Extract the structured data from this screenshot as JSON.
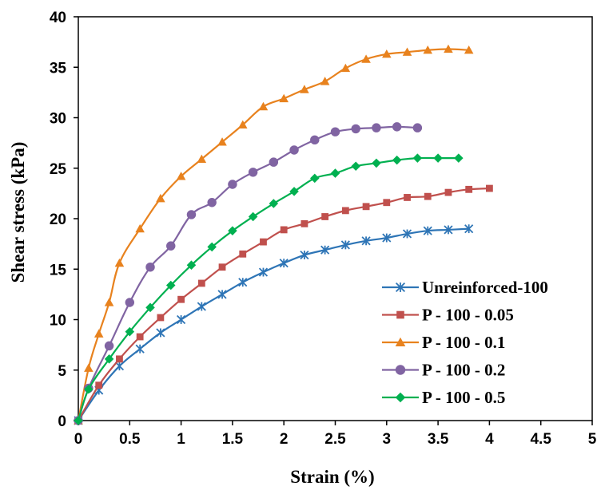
{
  "chart_data": {
    "type": "line",
    "title": "",
    "xlabel": "Strain (%)",
    "ylabel": "Shear stress (kPa)",
    "xlim": [
      0,
      5
    ],
    "ylim": [
      0,
      40
    ],
    "x_ticks": [
      "0",
      "0.5",
      "1",
      "1.5",
      "2",
      "2.5",
      "3",
      "3.5",
      "4",
      "4.5",
      "5"
    ],
    "y_ticks": [
      "0",
      "5",
      "10",
      "15",
      "20",
      "25",
      "30",
      "35",
      "40"
    ],
    "grid": false,
    "legend_position": "bottom-right",
    "series": [
      {
        "name": "Unreinforced-100",
        "color": "#2e75b6",
        "marker": "star",
        "x": [
          0,
          0.2,
          0.4,
          0.6,
          0.8,
          1.0,
          1.2,
          1.4,
          1.6,
          1.8,
          2.0,
          2.2,
          2.4,
          2.6,
          2.8,
          3.0,
          3.2,
          3.4,
          3.6,
          3.8
        ],
        "y": [
          0,
          3.0,
          5.4,
          7.1,
          8.7,
          10.0,
          11.3,
          12.5,
          13.7,
          14.7,
          15.6,
          16.4,
          16.9,
          17.4,
          17.8,
          18.1,
          18.5,
          18.8,
          18.9,
          19.0
        ]
      },
      {
        "name": "P - 100 - 0.05",
        "color": "#c0504d",
        "marker": "square",
        "x": [
          0,
          0.2,
          0.4,
          0.6,
          0.8,
          1.0,
          1.2,
          1.4,
          1.6,
          1.8,
          2.0,
          2.2,
          2.4,
          2.6,
          2.8,
          3.0,
          3.2,
          3.4,
          3.6,
          3.8,
          4.0
        ],
        "y": [
          0,
          3.5,
          6.1,
          8.3,
          10.2,
          12.0,
          13.6,
          15.2,
          16.5,
          17.7,
          18.9,
          19.5,
          20.2,
          20.8,
          21.2,
          21.6,
          22.1,
          22.2,
          22.6,
          22.9,
          23.0
        ]
      },
      {
        "name": "P - 100 - 0.1",
        "color": "#e8821e",
        "marker": "triangle",
        "x": [
          0,
          0.1,
          0.2,
          0.3,
          0.4,
          0.6,
          0.8,
          1.0,
          1.2,
          1.4,
          1.6,
          1.8,
          2.0,
          2.2,
          2.4,
          2.6,
          2.8,
          3.0,
          3.2,
          3.4,
          3.6,
          3.8
        ],
        "y": [
          0,
          5.2,
          8.6,
          11.7,
          15.6,
          19.0,
          22.0,
          24.2,
          25.9,
          27.6,
          29.3,
          31.1,
          31.9,
          32.8,
          33.6,
          34.9,
          35.8,
          36.3,
          36.5,
          36.7,
          36.8,
          36.7
        ]
      },
      {
        "name": "P - 100 - 0.2",
        "color": "#8064a2",
        "marker": "circle",
        "x": [
          0,
          0.1,
          0.3,
          0.5,
          0.7,
          0.9,
          1.1,
          1.3,
          1.5,
          1.7,
          1.9,
          2.1,
          2.3,
          2.5,
          2.7,
          2.9,
          3.1,
          3.3
        ],
        "y": [
          0,
          3.2,
          7.4,
          11.7,
          15.2,
          17.3,
          20.4,
          21.6,
          23.4,
          24.6,
          25.6,
          26.8,
          27.8,
          28.6,
          28.9,
          29.0,
          29.1,
          29.0
        ]
      },
      {
        "name": "P - 100 - 0.5",
        "color": "#00b050",
        "marker": "diamond",
        "x": [
          0,
          0.1,
          0.3,
          0.5,
          0.7,
          0.9,
          1.1,
          1.3,
          1.5,
          1.7,
          1.9,
          2.1,
          2.3,
          2.5,
          2.7,
          2.9,
          3.1,
          3.3,
          3.5,
          3.7
        ],
        "y": [
          0,
          3.1,
          6.1,
          8.8,
          11.2,
          13.4,
          15.4,
          17.2,
          18.8,
          20.2,
          21.5,
          22.7,
          24.0,
          24.5,
          25.2,
          25.5,
          25.8,
          26.0,
          26.0,
          26.0
        ]
      }
    ]
  }
}
